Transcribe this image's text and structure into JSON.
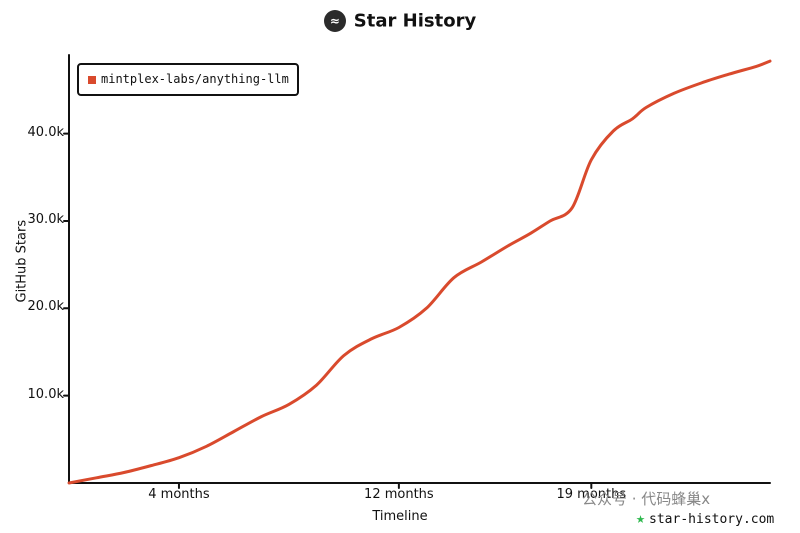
{
  "title": "Star History",
  "logo_icon": "star-history-logo-icon",
  "watermark": "公众号 · 代码蜂巢x",
  "site": "star-history.com",
  "chart_data": {
    "type": "line",
    "title": "Star History",
    "xlabel": "Timeline",
    "ylabel": "GitHub Stars",
    "x_ticks": [
      "4 months",
      "12 months",
      "19 months"
    ],
    "y_ticks": [
      "10.0k",
      "20.0k",
      "30.0k",
      "40.0k"
    ],
    "xlim": [
      0,
      25.5
    ],
    "ylim": [
      0,
      49000
    ],
    "grid": false,
    "legend_position": "top-left",
    "series": [
      {
        "name": "mintplex-labs/anything-llm",
        "color": "#d94a2d",
        "x": [
          0,
          1,
          2,
          3,
          4,
          5,
          6,
          7,
          8,
          9,
          10,
          11,
          12,
          13,
          14,
          15,
          16,
          16.8,
          17.5,
          18.3,
          19,
          19.8,
          20.5,
          21,
          22,
          23,
          24,
          25,
          25.5
        ],
        "y": [
          0,
          600,
          1200,
          2000,
          2900,
          4200,
          5900,
          7600,
          9000,
          11200,
          14600,
          16500,
          17800,
          20000,
          23500,
          25300,
          27200,
          28600,
          30000,
          31500,
          37000,
          40300,
          41700,
          43000,
          44600,
          45800,
          46800,
          47700,
          48300
        ]
      }
    ]
  }
}
